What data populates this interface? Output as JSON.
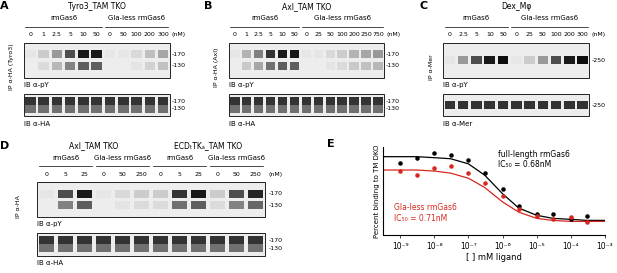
{
  "blots": [
    {
      "label": "A",
      "ip_label": "IP α-HA (Tyro3)",
      "unit": "(nM)",
      "blot_labels": [
        "IB α-pY",
        "IB α-HA"
      ],
      "markers_top": [
        "-170",
        "-130"
      ],
      "markers_bottom": [
        "-170",
        "-130"
      ],
      "cells": [
        {
          "name": "Tyro3_TAM TKO",
          "groups": [
            {
              "name": "rmGas6",
              "lanes": [
                "0",
                "1",
                "2.5",
                "5",
                "10",
                "50"
              ],
              "py": [
                0.1,
                0.2,
                0.4,
                0.7,
                0.9,
                0.9
              ],
              "ha": [
                0.8,
                0.8,
                0.8,
                0.8,
                0.8,
                0.8
              ]
            },
            {
              "name": "Gla-less rmGas6",
              "lanes": [
                "0",
                "50",
                "100",
                "200",
                "300"
              ],
              "py": [
                0.1,
                0.1,
                0.15,
                0.25,
                0.35
              ],
              "ha": [
                0.8,
                0.8,
                0.8,
                0.8,
                0.8
              ]
            }
          ]
        }
      ]
    },
    {
      "label": "B",
      "ip_label": "IP α-HA (Axl)",
      "unit": "(nM)",
      "blot_labels": [
        "IB α-pY",
        "IB α-HA"
      ],
      "markers_top": [
        "-170",
        "-130"
      ],
      "markers_bottom": [
        "-170",
        "-130"
      ],
      "cells": [
        {
          "name": "Axl_TAM TKO",
          "groups": [
            {
              "name": "rmGas6",
              "lanes": [
                "0",
                "1",
                "2.5",
                "5",
                "10",
                "50"
              ],
              "py": [
                0.1,
                0.3,
                0.5,
                0.8,
                0.9,
                0.9
              ],
              "ha": [
                0.8,
                0.8,
                0.8,
                0.8,
                0.8,
                0.8
              ]
            },
            {
              "name": "Gla-less rmGas6",
              "lanes": [
                "0",
                "25",
                "50",
                "100",
                "200",
                "250",
                "750"
              ],
              "py": [
                0.1,
                0.1,
                0.15,
                0.2,
                0.3,
                0.35,
                0.4
              ],
              "ha": [
                0.8,
                0.8,
                0.8,
                0.8,
                0.8,
                0.8,
                0.8
              ]
            }
          ]
        }
      ]
    },
    {
      "label": "C",
      "ip_label": "IP α-Mer",
      "unit": "(nM)",
      "blot_labels": [
        "IB α-pY",
        "IB α-Mer"
      ],
      "markers_top": [
        "-250"
      ],
      "markers_bottom": [
        "-250"
      ],
      "cells": [
        {
          "name": "Dex_Mφ",
          "groups": [
            {
              "name": "rmGas6",
              "lanes": [
                "0",
                "2.5",
                "5",
                "10",
                "50"
              ],
              "py": [
                0.1,
                0.4,
                0.7,
                0.9,
                0.95
              ],
              "ha": [
                0.8,
                0.8,
                0.8,
                0.8,
                0.8
              ]
            },
            {
              "name": "Gla-less rmGas6",
              "lanes": [
                "0",
                "25",
                "50",
                "100",
                "200",
                "300"
              ],
              "py": [
                0.1,
                0.2,
                0.4,
                0.7,
                0.9,
                0.95
              ],
              "ha": [
                0.8,
                0.8,
                0.8,
                0.8,
                0.8,
                0.8
              ]
            }
          ]
        }
      ]
    },
    {
      "label": "D",
      "ip_label": "IP α-HA",
      "unit": "(nM)",
      "blot_labels": [
        "IB α-pY",
        "IB α-HA"
      ],
      "markers_top": [
        "-170",
        "-130"
      ],
      "markers_bottom": [
        "-170",
        "-130"
      ],
      "cells": [
        {
          "name": "Axl_TAM TKO",
          "groups": [
            {
              "name": "rmGas6",
              "lanes": [
                "0",
                "5",
                "25"
              ],
              "py": [
                0.1,
                0.7,
                0.9
              ],
              "ha": [
                0.8,
                0.8,
                0.8
              ]
            },
            {
              "name": "Gla-less rmGas6",
              "lanes": [
                "0",
                "50",
                "250"
              ],
              "py": [
                0.1,
                0.15,
                0.2
              ],
              "ha": [
                0.8,
                0.8,
                0.8
              ]
            }
          ]
        },
        {
          "name": "ECDₜTKₐ_TAM TKO",
          "groups": [
            {
              "name": "rmGas6",
              "lanes": [
                "0",
                "5",
                "25"
              ],
              "py": [
                0.2,
                0.8,
                0.9
              ],
              "ha": [
                0.8,
                0.8,
                0.8
              ]
            },
            {
              "name": "Gla-less rmGas6",
              "lanes": [
                "0",
                "50",
                "250"
              ],
              "py": [
                0.2,
                0.7,
                0.85
              ],
              "ha": [
                0.8,
                0.8,
                0.8
              ]
            }
          ]
        }
      ]
    }
  ],
  "chart_data": {
    "label": "E",
    "type": "scatter",
    "log": "x",
    "tick_labels": "x",
    "x_label": "[ ] mM ligand",
    "y_label": "Percent binding to TM DKO",
    "xlim": [
      3e-10,
      0.001
    ],
    "xticks": [
      {
        "value": 1e-09,
        "label": "10⁻⁹"
      },
      {
        "value": 1e-08,
        "label": "10⁻⁸"
      },
      {
        "value": 1e-07,
        "label": "10⁻⁷"
      },
      {
        "value": 1e-06,
        "label": "10⁻⁶"
      },
      {
        "value": 1e-05,
        "label": "10⁻⁵"
      },
      {
        "value": 0.0001,
        "label": "10⁻⁴"
      },
      {
        "value": 0.001,
        "label": "10⁻³"
      }
    ],
    "ylim": [
      30,
      115
    ],
    "annotations": [
      {
        "text": "full-length rmGas6\nIC₅₀ = 0.68nM",
        "color": "#000000"
      },
      {
        "text": "Gla-less rmGas6\nIC₅₀ = 0.71nM",
        "color": "#d7261e"
      }
    ],
    "series": [
      {
        "type": "scatter",
        "color": "#000000",
        "marker": "circle",
        "x": [
          1e-09,
          3e-09,
          1e-08,
          3e-08,
          1e-07,
          3e-07,
          1e-06,
          3e-06,
          1e-05,
          3e-05,
          0.0001,
          0.0003
        ],
        "values": [
          100,
          105,
          110,
          108,
          103,
          90,
          75,
          58,
          50,
          50,
          45,
          48
        ]
      },
      {
        "type": "scatter",
        "color": "#d7261e",
        "marker": "circle",
        "x": [
          1e-09,
          3e-09,
          1e-08,
          3e-08,
          1e-07,
          3e-07,
          1e-06,
          3e-06,
          1e-05,
          3e-05,
          0.0001,
          0.0003
        ],
        "values": [
          92,
          88,
          95,
          97,
          90,
          80,
          68,
          55,
          48,
          45,
          47,
          42
        ]
      },
      {
        "type": "line",
        "color": "#000000",
        "line_style": "solid",
        "x": [
          3e-10,
          1e-09,
          3e-09,
          1e-08,
          3e-08,
          1e-07,
          3e-07,
          1e-06,
          3e-06,
          1e-05,
          3e-05,
          0.0001,
          0.0003,
          0.001
        ],
        "values": [
          106,
          106,
          106,
          105,
          104,
          99,
          88,
          70,
          56,
          49,
          46,
          45,
          44,
          44
        ]
      },
      {
        "type": "line",
        "color": "#d7261e",
        "line_style": "solid",
        "x": [
          3e-10,
          1e-09,
          3e-09,
          1e-08,
          3e-08,
          1e-07,
          3e-07,
          1e-06,
          3e-06,
          1e-05,
          3e-05,
          0.0001,
          0.0003,
          0.001
        ],
        "values": [
          93,
          93,
          93,
          92,
          90,
          85,
          76,
          62,
          52,
          46,
          44,
          43,
          43,
          43
        ]
      }
    ]
  }
}
